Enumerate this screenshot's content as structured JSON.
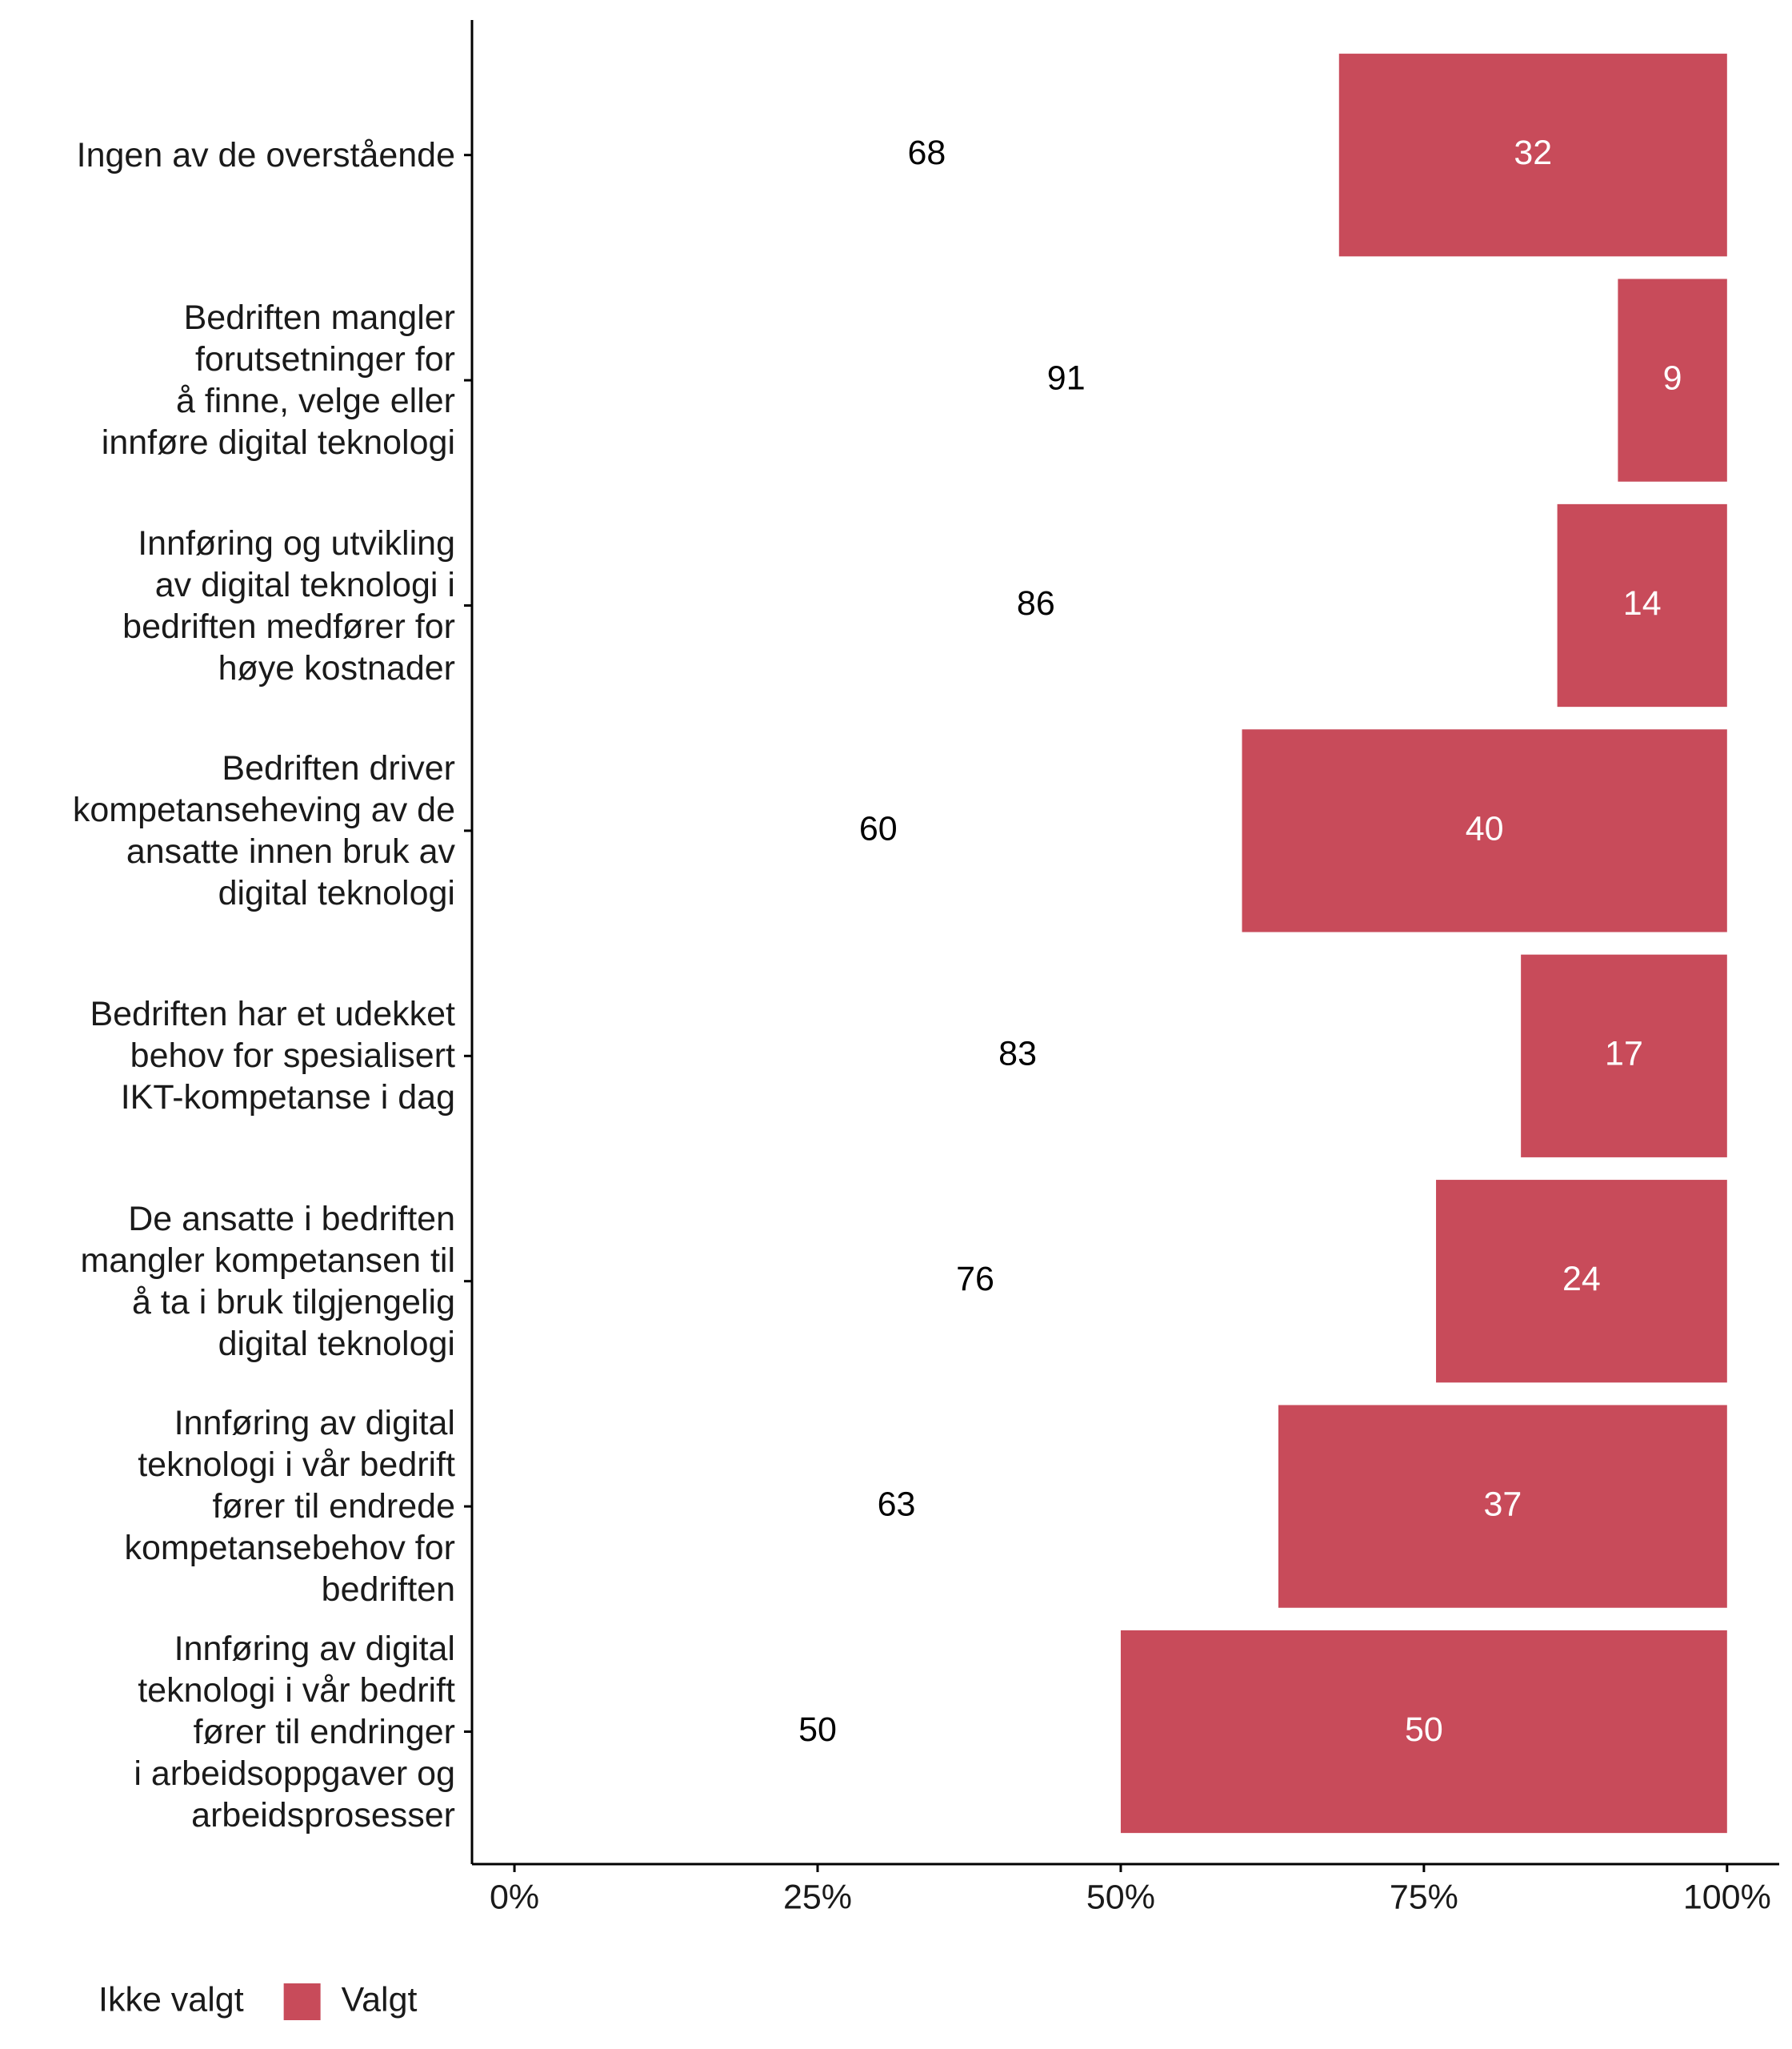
{
  "chart_data": {
    "type": "stacked-barh",
    "categories": [
      "Ingen av de overstående",
      "Bedriften mangler\nforutsetninger for\nå finne, velge eller\ninnføre digital teknologi",
      "Innføring og utvikling\nav digital teknologi i\nbedriften medfører for\nhøye kostnader",
      "Bedriften driver\nkompetanseheving av de\nansatte innen bruk av\ndigital teknologi",
      "Bedriften har et udekket\nbehov for spesialisert\nIKT-kompetanse i dag",
      "De ansatte i bedriften\nmangler kompetansen til\nå ta i bruk tilgjengelig\ndigital teknologi",
      "Innføring av digital\nteknologi i vår bedrift\nfører til endrede\nkompetansebehov for\nbedriften",
      "Innføring av digital\nteknologi i vår bedrift\nfører til endringer\ni arbeidsoppgaver og\narbeidsprosesser"
    ],
    "series": [
      {
        "name": "Ikke valgt",
        "color": "#ffffff",
        "values": [
          68,
          91,
          86,
          60,
          83,
          76,
          63,
          50
        ]
      },
      {
        "name": "Valgt",
        "color": "#c84b5a",
        "values": [
          32,
          9,
          14,
          40,
          17,
          24,
          37,
          50
        ]
      }
    ],
    "xlim": [
      -3.5,
      104.3
    ],
    "xticks": [
      {
        "value": 0,
        "label": "0%"
      },
      {
        "value": 25,
        "label": "25%"
      },
      {
        "value": 50,
        "label": "50%"
      },
      {
        "value": 75,
        "label": "75%"
      },
      {
        "value": 100,
        "label": "100%"
      }
    ],
    "legend": "bottom-left"
  }
}
